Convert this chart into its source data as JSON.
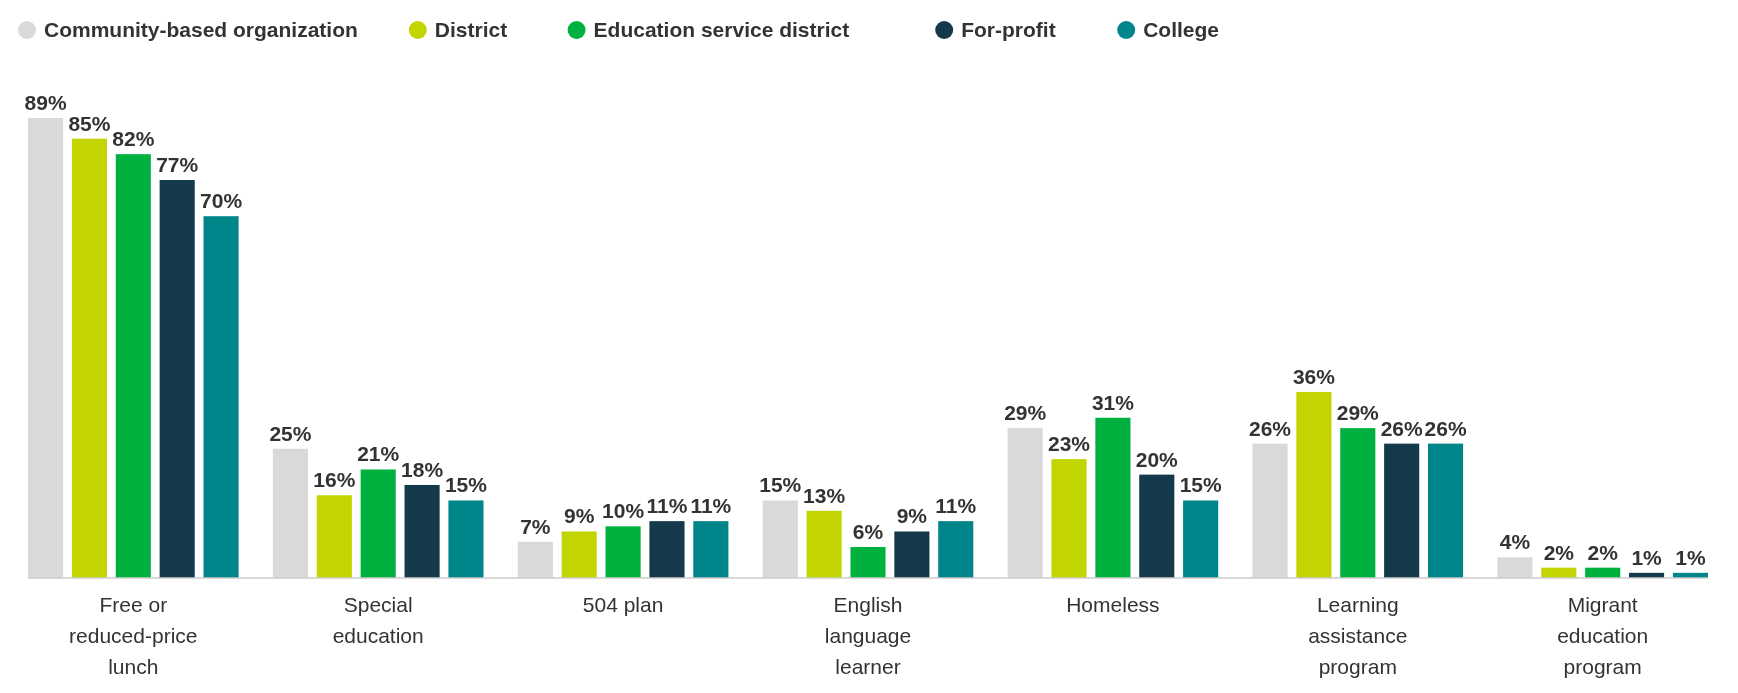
{
  "chart_data": {
    "type": "bar",
    "categories": [
      "Free or reduced-price lunch",
      "Special education",
      "504 plan",
      "English language learner",
      "Homeless",
      "Learning assistance program",
      "Migrant education program"
    ],
    "series": [
      {
        "name": "Community-based organization",
        "color": "#d9d9d9",
        "values": [
          89,
          25,
          7,
          15,
          29,
          26,
          4
        ],
        "value_labels": [
          "89%",
          "25%",
          "7%",
          "15%",
          "29%",
          "26%",
          "4%"
        ]
      },
      {
        "name": "District",
        "color": "#c2d500",
        "values": [
          85,
          16,
          9,
          13,
          23,
          36,
          2
        ],
        "value_labels": [
          "85%",
          "16%",
          "9%",
          "13%",
          "23%",
          "36%",
          "2%"
        ]
      },
      {
        "name": "Education service district",
        "color": "#00b140",
        "values": [
          82,
          21,
          10,
          6,
          31,
          29,
          2
        ],
        "value_labels": [
          "82%",
          "21%",
          "10%",
          "6%",
          "31%",
          "29%",
          "2%"
        ]
      },
      {
        "name": "For-profit",
        "color": "#14394a",
        "values": [
          77,
          18,
          11,
          9,
          20,
          26,
          1
        ],
        "value_labels": [
          "77%",
          "18%",
          "11%",
          "9%",
          "20%",
          "26%",
          "1%"
        ]
      },
      {
        "name": "College",
        "color": "#00858a",
        "values": [
          70,
          15,
          11,
          11,
          15,
          26,
          1
        ],
        "value_labels": [
          "70%",
          "15%",
          "11%",
          "11%",
          "15%",
          "26%",
          "1%"
        ]
      }
    ],
    "legend": "top left",
    "grid": false
  }
}
